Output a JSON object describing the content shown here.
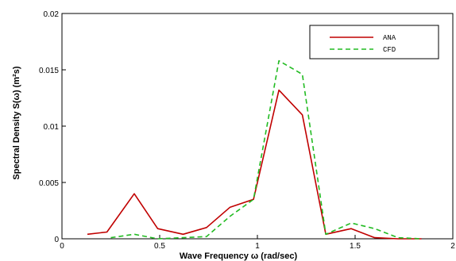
{
  "chart_data": {
    "type": "line",
    "xlabel": "Wave Frequency ω (rad/sec)",
    "ylabel": "Spectral Density S(ω) (m²s)",
    "xlim": [
      0,
      2
    ],
    "ylim": [
      0,
      0.02
    ],
    "xticks": [
      "0",
      "0.5",
      "1",
      "1.5",
      "2"
    ],
    "yticks": [
      "0",
      "0.005",
      "0.01",
      "0.015",
      "0.02"
    ],
    "grid": false,
    "legend_position": "top-right",
    "series": [
      {
        "name": "ANA",
        "color": "#c00000",
        "style": "solid",
        "points": [
          [
            0.13,
            0.0004
          ],
          [
            0.23,
            0.0006
          ],
          [
            0.37,
            0.004
          ],
          [
            0.49,
            0.0009
          ],
          [
            0.62,
            0.0004
          ],
          [
            0.74,
            0.001
          ],
          [
            0.86,
            0.0028
          ],
          [
            0.98,
            0.0035
          ],
          [
            1.11,
            0.0132
          ],
          [
            1.23,
            0.011
          ],
          [
            1.35,
            0.0004
          ],
          [
            1.48,
            0.0009
          ],
          [
            1.6,
            0.0001
          ],
          [
            1.72,
            0.0
          ],
          [
            1.84,
            0.0
          ]
        ]
      },
      {
        "name": "CFD",
        "color": "#22bb22",
        "style": "dashed",
        "points": [
          [
            0.25,
            0.0001
          ],
          [
            0.37,
            0.0004
          ],
          [
            0.49,
            0.0
          ],
          [
            0.62,
            0.0001
          ],
          [
            0.74,
            0.0002
          ],
          [
            0.86,
            0.002
          ],
          [
            0.98,
            0.0035
          ],
          [
            1.11,
            0.0158
          ],
          [
            1.23,
            0.0146
          ],
          [
            1.35,
            0.0004
          ],
          [
            1.48,
            0.0014
          ],
          [
            1.6,
            0.0009
          ],
          [
            1.72,
            0.0001
          ],
          [
            1.84,
            0.0
          ]
        ]
      }
    ]
  }
}
